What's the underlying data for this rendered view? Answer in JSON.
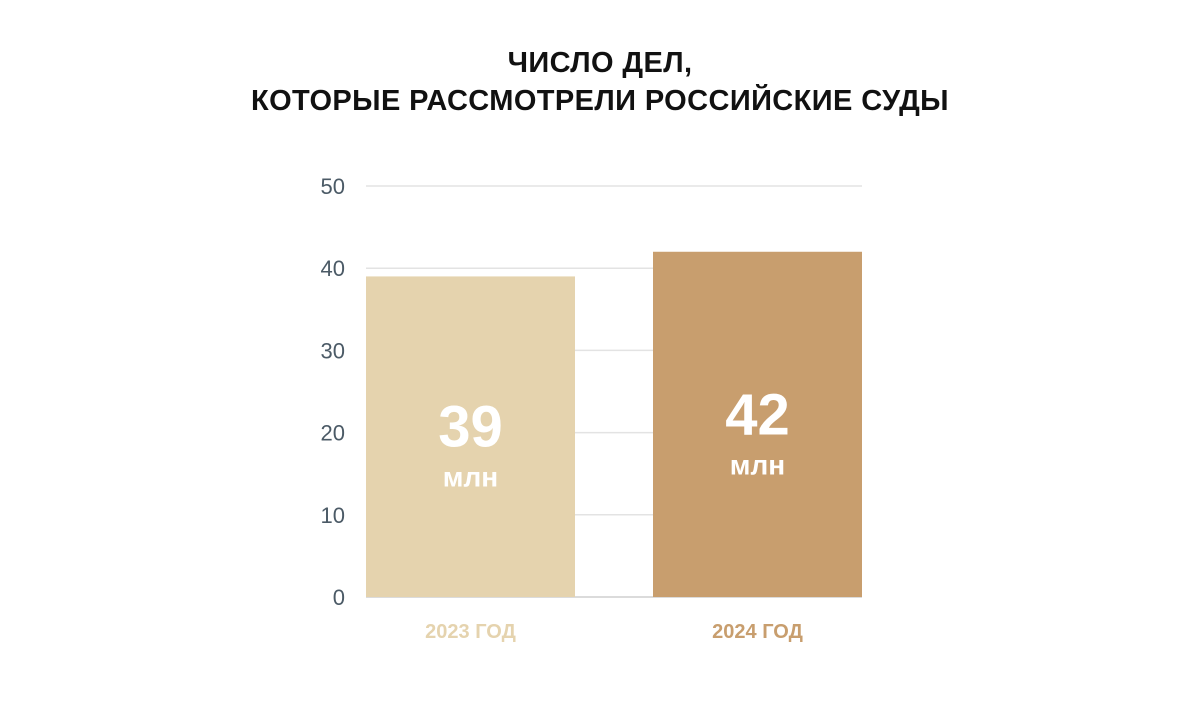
{
  "chart_data": {
    "type": "bar",
    "title": [
      "ЧИСЛО ДЕЛ,",
      "КОТОРЫЕ РАССМОТРЕЛИ РОССИЙСКИЕ СУДЫ"
    ],
    "categories": [
      "2023 ГОД",
      "2024 ГОД"
    ],
    "values": [
      39,
      42
    ],
    "data_labels": [
      "39",
      "42"
    ],
    "data_label_unit": "млн",
    "yticks": [
      "0",
      "10",
      "20",
      "30",
      "40",
      "50"
    ],
    "ylim": [
      0,
      50
    ],
    "grid": "horizontal",
    "legend": "none",
    "colors": [
      "#e5d3ae",
      "#c89e6e"
    ],
    "tick_color": "#4b5a66",
    "grid_color": "#e3e3e3"
  }
}
